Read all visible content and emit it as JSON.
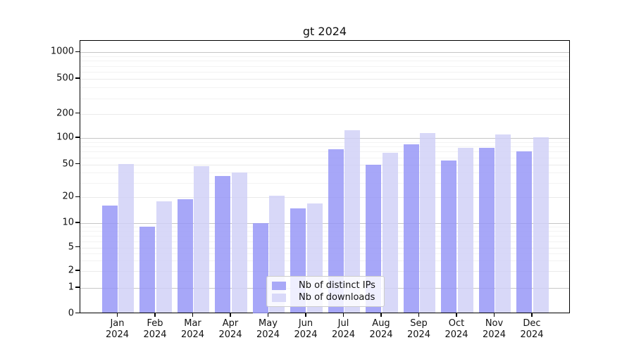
{
  "title": "gt 2024",
  "chart_data": {
    "type": "bar",
    "title": "gt 2024",
    "categories": [
      "Jan 2024",
      "Feb 2024",
      "Mar 2024",
      "Apr 2024",
      "May 2024",
      "Jun 2024",
      "Jul 2024",
      "Aug 2024",
      "Sep 2024",
      "Oct 2024",
      "Nov 2024",
      "Dec 2024"
    ],
    "series": [
      {
        "name": "Nb of distinct IPs",
        "color": "#a9a9f7",
        "fill": "rgba(148,148,246,0.82)",
        "values": [
          16,
          9,
          19,
          36,
          10,
          15,
          75,
          50,
          85,
          56,
          78,
          71
        ]
      },
      {
        "name": "Nb of downloads",
        "color": "#d9d9f9",
        "fill": "rgba(207,207,246,0.82)",
        "values": [
          51,
          18,
          48,
          40,
          21,
          17,
          125,
          68,
          115,
          78,
          110,
          102
        ]
      }
    ],
    "xlabel": "",
    "ylabel": "",
    "y_axis": {
      "scale": "symlog",
      "ticks": [
        0,
        1,
        2,
        5,
        10,
        20,
        50,
        100,
        200,
        500,
        1000
      ],
      "major_ticks": [
        1,
        10,
        100,
        1000
      ],
      "ylim": [
        0,
        1200
      ],
      "grid": "horizontal"
    },
    "legend": {
      "position": "lower-center-inside",
      "entries": [
        "Nb of distinct IPs",
        "Nb of downloads"
      ]
    }
  },
  "colors": {
    "background": "#ffffff",
    "axis": "#000000",
    "grid_major": "#c6c6c6",
    "grid_labeled": "#eaeaea",
    "grid_minor": "#f3f3f3",
    "text": "#111111"
  }
}
